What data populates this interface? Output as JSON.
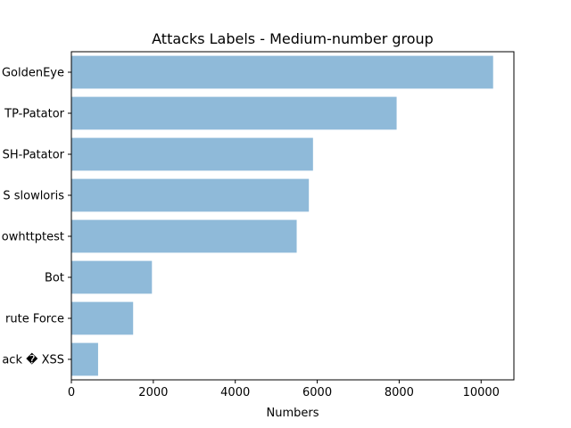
{
  "chart_data": {
    "type": "bar",
    "orientation": "horizontal",
    "title": "Attacks Labels - Medium-number group",
    "xlabel": "Numbers",
    "ylabel": "",
    "categories": [
      "Web Attack  XSS",
      "Web Attack  Brute Force",
      "Bot",
      "DoS Slowhttptest",
      "DoS slowloris",
      "SSH-Patator",
      "FTP-Patator",
      "DoS GoldenEye"
    ],
    "visible_labels": [
      "ack � XSS",
      "rute Force",
      "Bot",
      "owhttptest",
      "S slowloris",
      "SH-Patator",
      "TP-Patator",
      "GoldenEye"
    ],
    "values": [
      652,
      1507,
      1966,
      5499,
      5796,
      5897,
      7938,
      10293
    ],
    "xlim": [
      0,
      10800
    ],
    "xticks": [
      0,
      2000,
      4000,
      6000,
      8000,
      10000
    ],
    "bar_color": "#8fbad9",
    "grid": false,
    "legend": "none"
  }
}
